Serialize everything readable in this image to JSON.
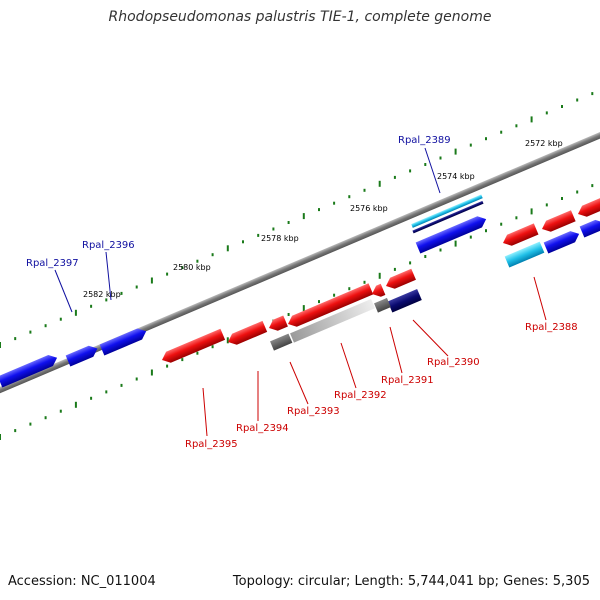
{
  "title": "Rhodopseudomonas palustris TIE-1, complete genome",
  "accession": "Accession: NC_011004",
  "topology": "Topology: circular; Length: 5,744,041 bp; Genes: 5,305",
  "ruler_labels": [
    "2572 kbp",
    "2574 kbp",
    "2576 kbp",
    "2578 kbp",
    "2580 kbp",
    "2582 kbp"
  ],
  "gene_labels": {
    "top": [
      "Rpal_2389",
      "Rpal_2396",
      "Rpal_2397"
    ],
    "bottom": [
      "Rpal_2388",
      "Rpal_2390",
      "Rpal_2391",
      "Rpal_2392",
      "Rpal_2393",
      "Rpal_2394",
      "Rpal_2395"
    ]
  },
  "colors": {
    "forward_gene": "#1010e0",
    "reverse_gene": "#e01010",
    "backbone": "#777777",
    "ruler": "#1a7a1a",
    "top_label": "#1010a0",
    "bottom_label": "#cc0000",
    "highlight_cyan": "#20c0e0",
    "navy": "#0a0a70"
  }
}
